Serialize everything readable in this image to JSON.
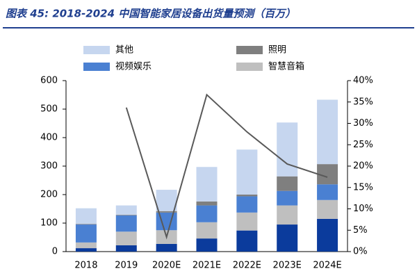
{
  "chart_data": {
    "type": "bar",
    "stacked": true,
    "title": "图表 45:  2018-2024 中国智能家居设备出货量预测（百万）",
    "categories": [
      "2018",
      "2019",
      "2020E",
      "2021E",
      "2022E",
      "2023E",
      "2024E"
    ],
    "series": [
      {
        "color": "#0b3b9c",
        "values": [
          12,
          22,
          27,
          46,
          74,
          95,
          115
        ]
      },
      {
        "name": "智慧音箱",
        "color": "#bfbfbf",
        "values": [
          20,
          48,
          48,
          57,
          63,
          67,
          66
        ]
      },
      {
        "name": "视频娱乐",
        "color": "#4a80d2",
        "values": [
          63,
          57,
          62,
          59,
          57,
          51,
          55
        ]
      },
      {
        "name": "照明",
        "color": "#7f7f7f",
        "values": [
          2,
          2,
          5,
          14,
          6,
          51,
          71
        ]
      },
      {
        "name": "其他",
        "color": "#c6d6ef",
        "values": [
          55,
          33,
          75,
          121,
          158,
          189,
          226
        ]
      },
      {
        "type": "line",
        "axis": "y2",
        "color": "#595959",
        "values": [
          null,
          33.7,
          3.4,
          36.7,
          28,
          20.5,
          17.4
        ]
      }
    ],
    "ylim": [
      0,
      600
    ],
    "yticks": [
      0,
      100,
      200,
      300,
      400,
      500,
      600
    ],
    "y2lim": [
      0,
      40
    ],
    "y2ticks": [
      {
        "value": 0,
        "label": "0%"
      },
      {
        "value": 5,
        "label": "5%"
      },
      {
        "value": 10,
        "label": "10%"
      },
      {
        "value": 15,
        "label": "15%"
      },
      {
        "value": 20,
        "label": "20%"
      },
      {
        "value": 25,
        "label": "25%"
      },
      {
        "value": 30,
        "label": "30%"
      },
      {
        "value": 35,
        "label": "35%"
      },
      {
        "value": 40,
        "label": "40%"
      }
    ],
    "grid": false
  }
}
